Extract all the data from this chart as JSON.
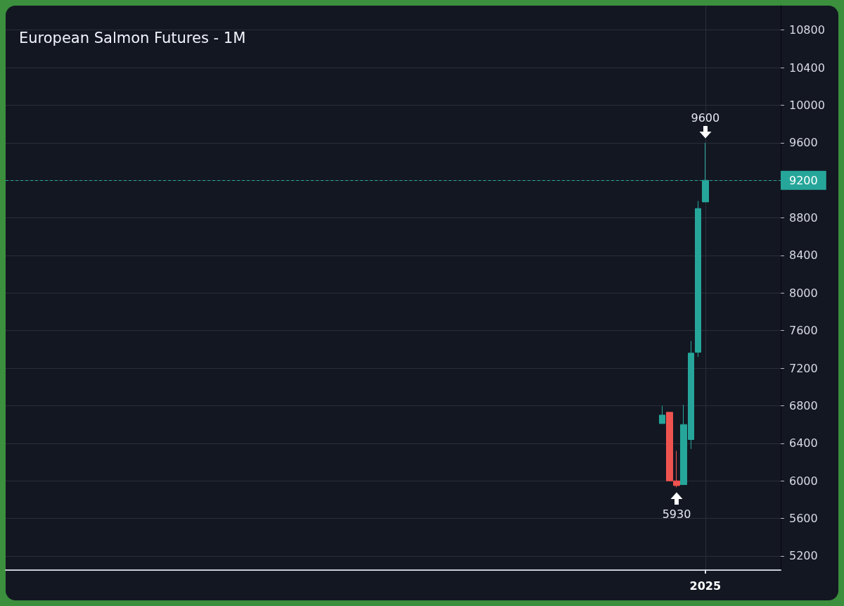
{
  "chart_data": {
    "type": "candlestick",
    "title": "European Salmon Futures - 1M",
    "categories": [
      null,
      null,
      null,
      null,
      null,
      null,
      null,
      null,
      null,
      null,
      null,
      null,
      null,
      null,
      null,
      null,
      null,
      null,
      null,
      null,
      null,
      null,
      null,
      null,
      null,
      null,
      null,
      null,
      null,
      null,
      null,
      null,
      null,
      null,
      null,
      null,
      null,
      null,
      null,
      null,
      null,
      null,
      null,
      null,
      null,
      null,
      null,
      null,
      null,
      null,
      null,
      null,
      null,
      null,
      null,
      null,
      null,
      null,
      null,
      null,
      null,
      null,
      null,
      null,
      null,
      null,
      null,
      null,
      null,
      null,
      null,
      null,
      null,
      null,
      null,
      null,
      null,
      null,
      null,
      null,
      null,
      null,
      null,
      null,
      null,
      null,
      null,
      null,
      null,
      null,
      null,
      null,
      null,
      null,
      null,
      null,
      null,
      "2025",
      null,
      null,
      null,
      null,
      null,
      null,
      null,
      null,
      null,
      null
    ],
    "ohlc": [
      null,
      null,
      null,
      null,
      null,
      null,
      null,
      null,
      null,
      null,
      null,
      null,
      null,
      null,
      null,
      null,
      null,
      null,
      null,
      null,
      null,
      null,
      null,
      null,
      null,
      null,
      null,
      null,
      null,
      null,
      null,
      null,
      null,
      null,
      null,
      null,
      null,
      null,
      null,
      null,
      null,
      null,
      null,
      null,
      null,
      null,
      null,
      null,
      null,
      null,
      null,
      null,
      null,
      null,
      null,
      null,
      null,
      null,
      null,
      null,
      null,
      null,
      null,
      null,
      null,
      null,
      null,
      null,
      null,
      null,
      null,
      null,
      null,
      null,
      null,
      null,
      null,
      null,
      null,
      null,
      null,
      null,
      null,
      null,
      null,
      null,
      null,
      null,
      null,
      null,
      null,
      [
        6610,
        6800,
        6610,
        6700
      ],
      [
        6730,
        6730,
        6000,
        6000
      ],
      [
        6000,
        6320,
        5930,
        5950
      ],
      [
        5960,
        6810,
        5960,
        6600
      ],
      [
        6440,
        7490,
        6340,
        7360
      ],
      [
        7370,
        8980,
        7320,
        8900
      ],
      [
        8970,
        9600,
        8970,
        9200
      ],
      null,
      null,
      null,
      null,
      null,
      null,
      null,
      null,
      null,
      null
    ],
    "colors": [
      null,
      null,
      null,
      null,
      null,
      null,
      null,
      null,
      null,
      null,
      null,
      null,
      null,
      null,
      null,
      null,
      null,
      null,
      null,
      null,
      null,
      null,
      null,
      null,
      null,
      null,
      null,
      null,
      null,
      null,
      null,
      null,
      null,
      null,
      null,
      null,
      null,
      null,
      null,
      null,
      null,
      null,
      null,
      null,
      null,
      null,
      null,
      null,
      null,
      null,
      null,
      null,
      null,
      null,
      null,
      null,
      null,
      null,
      null,
      null,
      null,
      null,
      null,
      null,
      null,
      null,
      null,
      null,
      null,
      null,
      null,
      null,
      null,
      null,
      null,
      null,
      null,
      null,
      null,
      null,
      null,
      null,
      null,
      null,
      null,
      null,
      null,
      null,
      null,
      null,
      null,
      "#26a69a",
      "#ef5350",
      "#ef5350",
      "#26a69a",
      "#26a69a",
      "#26a69a",
      "#26a69a",
      null,
      null,
      null,
      null,
      null,
      null,
      null,
      null,
      null,
      null
    ],
    "ylim": [
      5050,
      11060
    ],
    "yticks": [
      5200,
      5600,
      6000,
      6400,
      6800,
      7200,
      7600,
      8000,
      8400,
      8800,
      9200,
      9600,
      10000,
      10400,
      10800
    ],
    "grid": true,
    "ref_lines": [
      {
        "axis": "y",
        "value": 9200,
        "label": "9200",
        "color": "#26a69a",
        "line_style": "dashed"
      }
    ],
    "annotations": [
      {
        "text": "9600",
        "x": "2025",
        "y": 9600
      },
      {
        "text": "5930",
        "y": 5930
      }
    ]
  }
}
